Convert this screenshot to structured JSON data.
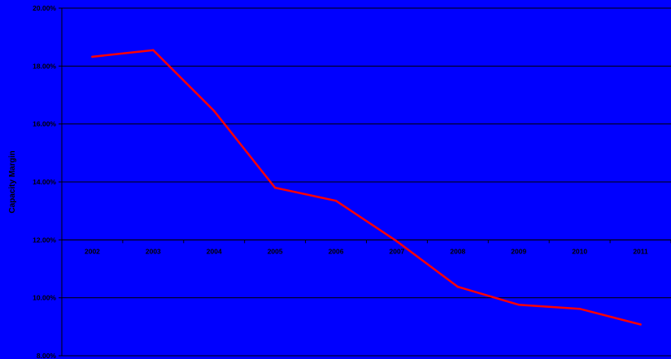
{
  "chart_data": {
    "type": "line",
    "title": "",
    "xlabel": "",
    "ylabel": "Capacity Margin",
    "categories": [
      "2002",
      "2003",
      "2004",
      "2005",
      "2006",
      "2007",
      "2008",
      "2009",
      "2010",
      "2011"
    ],
    "series": [
      {
        "values": [
          18.32,
          18.55,
          16.45,
          13.8,
          13.35,
          11.95,
          10.38,
          9.76,
          9.62,
          9.08
        ]
      }
    ],
    "ylim": [
      8,
      20
    ],
    "yticks": [
      8,
      10,
      12,
      14,
      16,
      18,
      20
    ],
    "ytick_labels": [
      "8.00%",
      "10.00%",
      "12.00%",
      "14.00%",
      "16.00%",
      "18.00%",
      "20.00%"
    ],
    "x_axis_crosses_at": 12,
    "grid": true,
    "legend": "none"
  },
  "colors": {
    "background": "#0000ff",
    "line": "#ff0000",
    "gridline": "#000000",
    "text": "#000000"
  }
}
